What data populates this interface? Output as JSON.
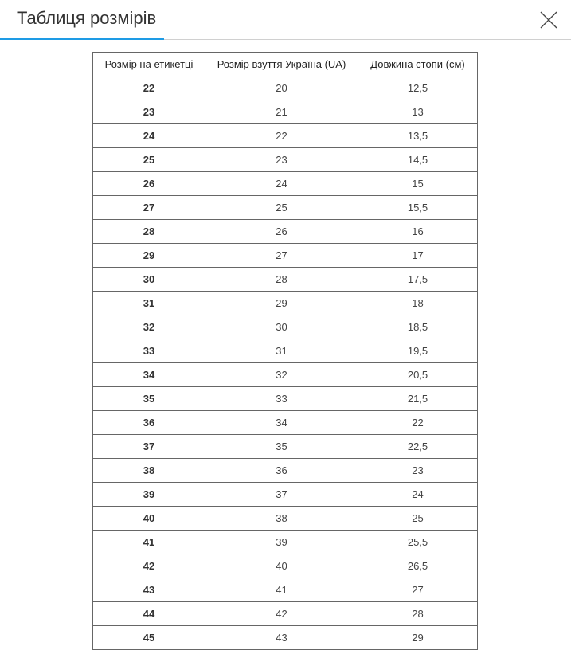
{
  "dialog": {
    "title": "Таблиця розмірів",
    "close_icon": "close-icon"
  },
  "table": {
    "headers": [
      "Розмір на етикетці",
      "Розмір взуття Україна (UA)",
      "Довжина стопи (см)"
    ],
    "rows": [
      [
        "22",
        "20",
        "12,5"
      ],
      [
        "23",
        "21",
        "13"
      ],
      [
        "24",
        "22",
        "13,5"
      ],
      [
        "25",
        "23",
        "14,5"
      ],
      [
        "26",
        "24",
        "15"
      ],
      [
        "27",
        "25",
        "15,5"
      ],
      [
        "28",
        "26",
        "16"
      ],
      [
        "29",
        "27",
        "17"
      ],
      [
        "30",
        "28",
        "17,5"
      ],
      [
        "31",
        "29",
        "18"
      ],
      [
        "32",
        "30",
        "18,5"
      ],
      [
        "33",
        "31",
        "19,5"
      ],
      [
        "34",
        "32",
        "20,5"
      ],
      [
        "35",
        "33",
        "21,5"
      ],
      [
        "36",
        "34",
        "22"
      ],
      [
        "37",
        "35",
        "22,5"
      ],
      [
        "38",
        "36",
        "23"
      ],
      [
        "39",
        "37",
        "24"
      ],
      [
        "40",
        "38",
        "25"
      ],
      [
        "41",
        "39",
        "25,5"
      ],
      [
        "42",
        "40",
        "26,5"
      ],
      [
        "43",
        "41",
        "27"
      ],
      [
        "44",
        "42",
        "28"
      ],
      [
        "45",
        "43",
        "29"
      ]
    ]
  },
  "colors": {
    "accent": "#1e9be5",
    "border": "#666666"
  }
}
